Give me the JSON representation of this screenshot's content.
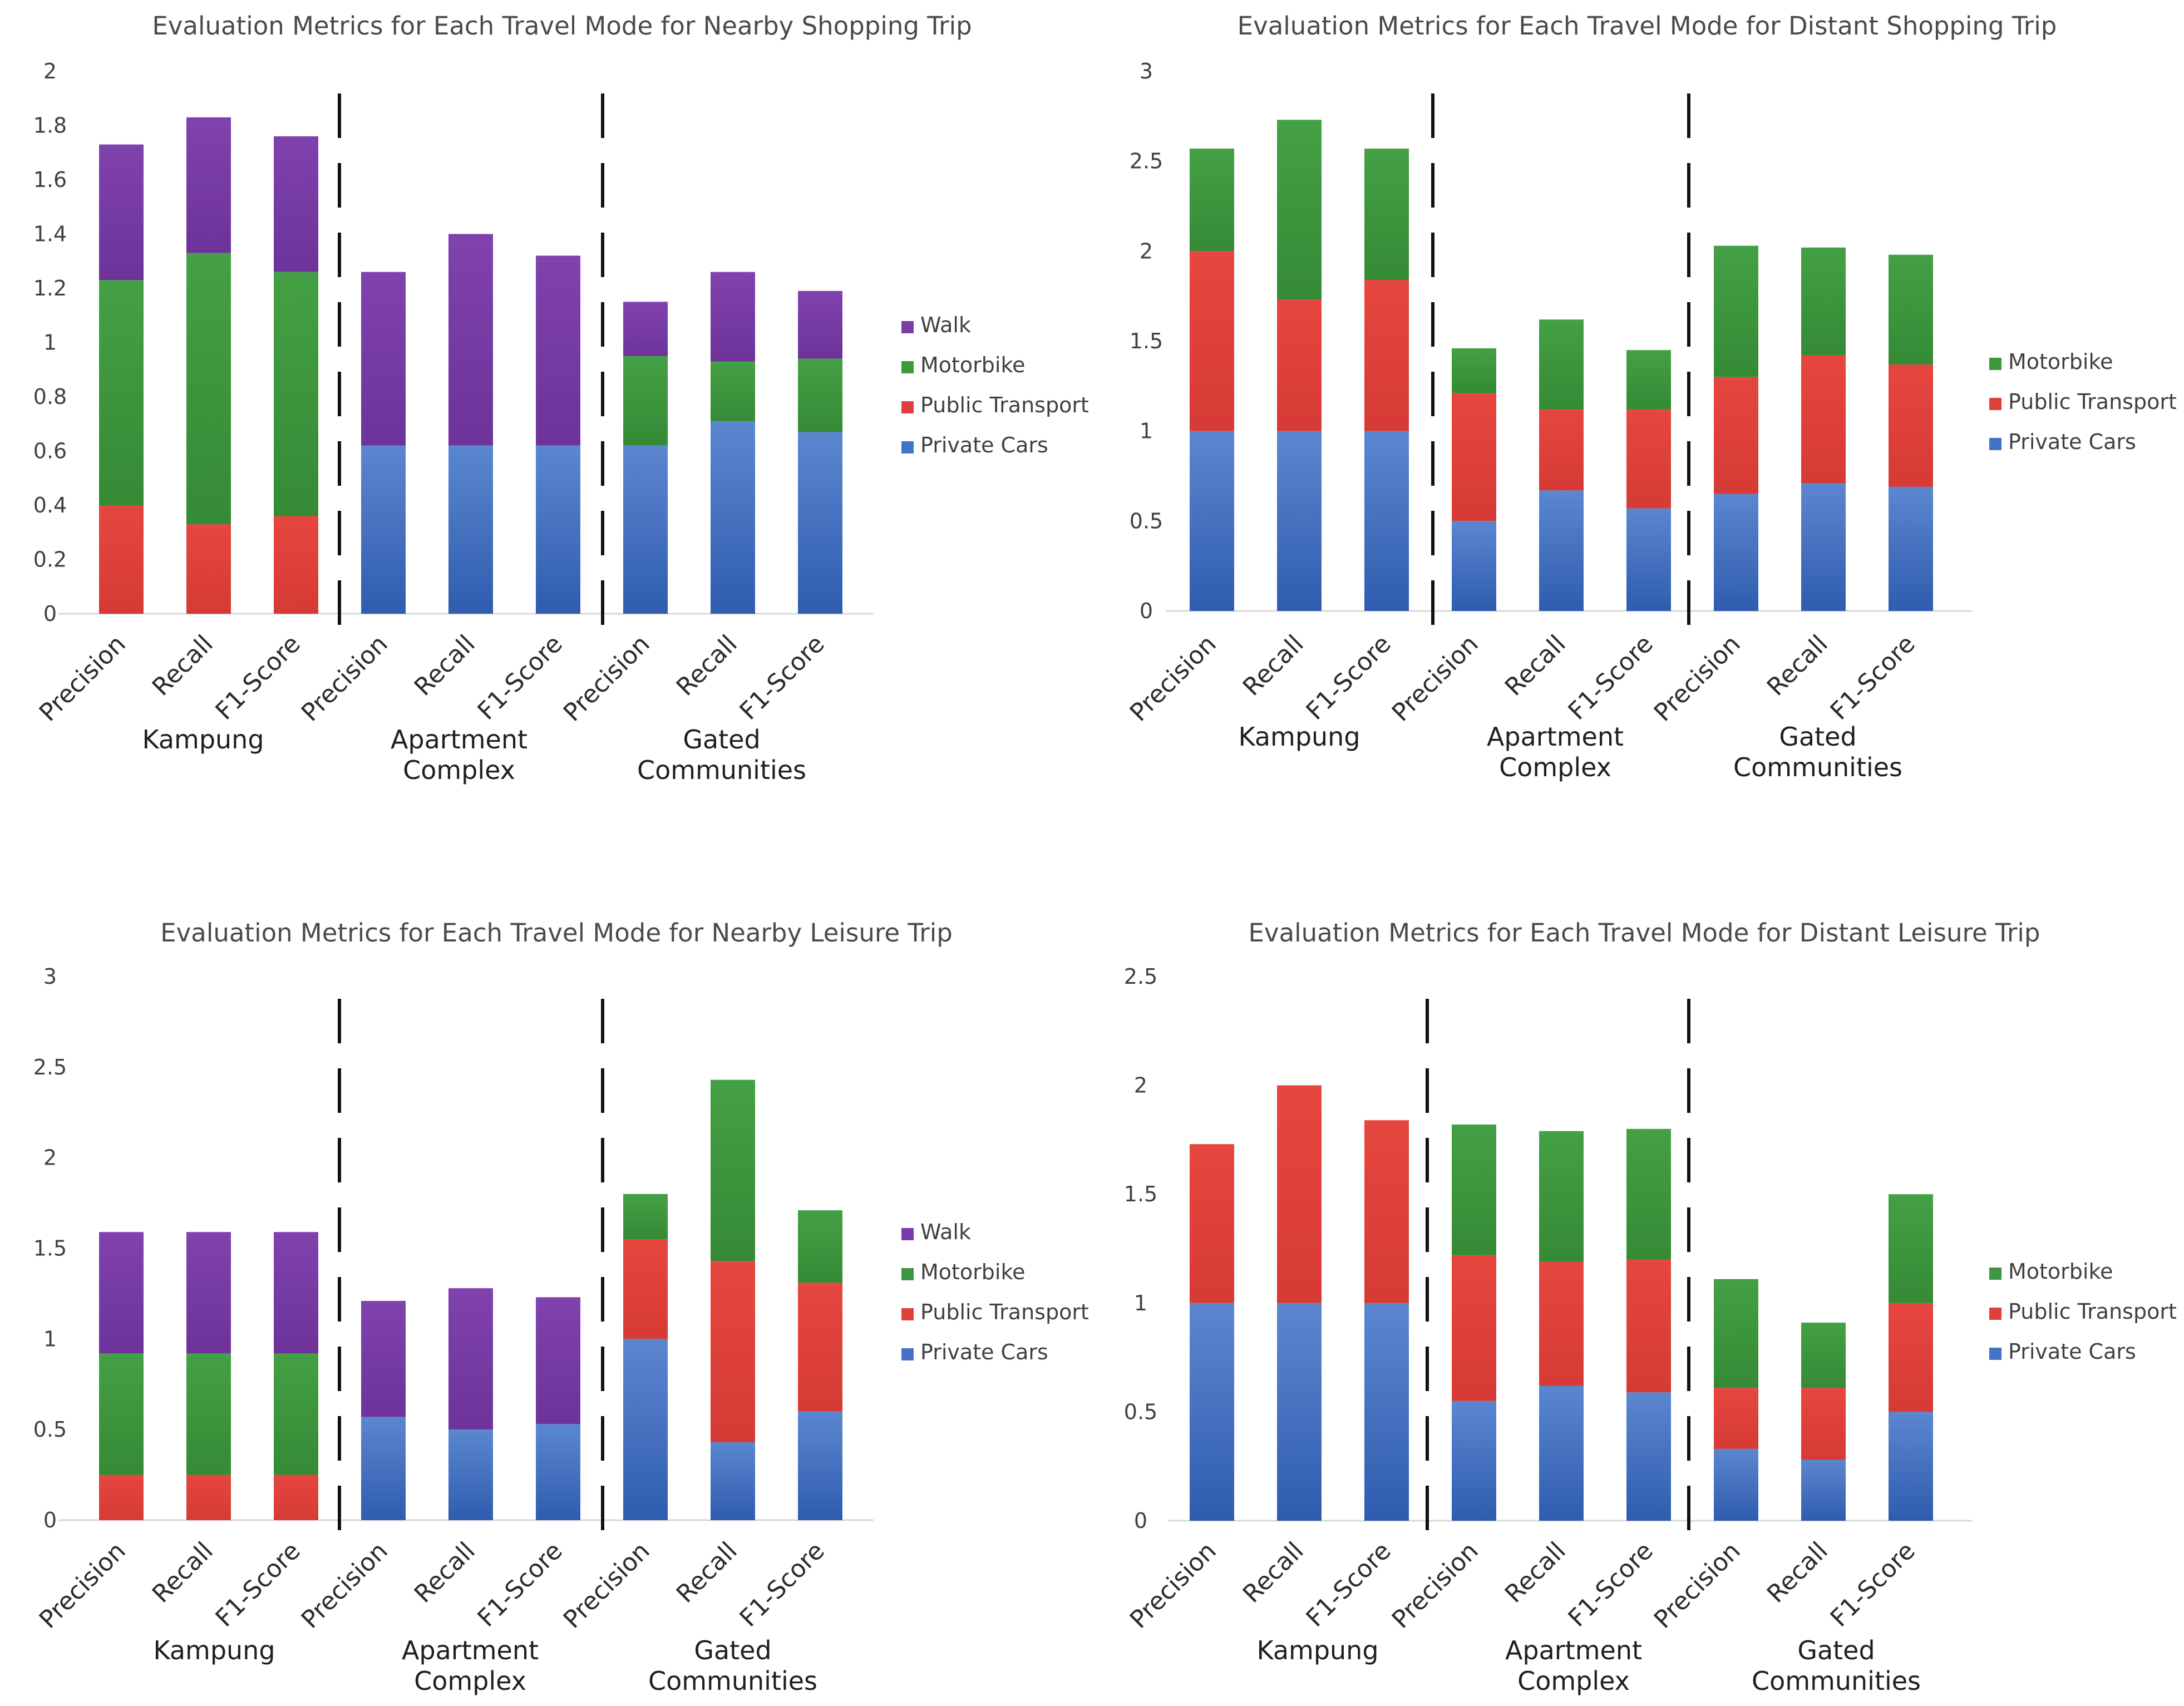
{
  "colors": {
    "Private Cars": "#4472C4",
    "Public Transport": "#E0403C",
    "Motorbike": "#3E963E",
    "Walk": "#7A3CA6"
  },
  "chart_data": [
    {
      "type": "bar",
      "stacked": true,
      "title": "Evaluation Metrics for Each Travel Mode for Nearby Shopping Trip",
      "groups": [
        "Kampung",
        "Apartment\nComplex",
        "Gated\nCommunities"
      ],
      "categories": [
        "Precision",
        "Recall",
        "F1-Score"
      ],
      "ylim": [
        0,
        2
      ],
      "yticks": [
        "0",
        "0.2",
        "0.4",
        "0.6",
        "0.8",
        "1",
        "1.2",
        "1.4",
        "1.6",
        "1.8",
        "2"
      ],
      "legend": [
        "Walk",
        "Motorbike",
        "Public Transport",
        "Private Cars"
      ],
      "series": [
        {
          "name": "Private Cars",
          "values": [
            [
              0,
              0,
              0
            ],
            [
              0.62,
              0.62,
              0.62
            ],
            [
              0.62,
              0.71,
              0.67
            ]
          ]
        },
        {
          "name": "Public Transport",
          "values": [
            [
              0.4,
              0.33,
              0.36
            ],
            [
              0,
              0,
              0
            ],
            [
              0,
              0,
              0
            ]
          ]
        },
        {
          "name": "Motorbike",
          "values": [
            [
              0.83,
              1.0,
              0.9
            ],
            [
              0,
              0,
              0
            ],
            [
              0.33,
              0.22,
              0.27
            ]
          ]
        },
        {
          "name": "Walk",
          "values": [
            [
              0.5,
              0.5,
              0.5
            ],
            [
              0.64,
              0.78,
              0.7
            ],
            [
              0.2,
              0.33,
              0.25
            ]
          ]
        }
      ]
    },
    {
      "type": "bar",
      "stacked": true,
      "title": "Evaluation Metrics for Each Travel Mode for Distant Shopping Trip",
      "groups": [
        "Kampung",
        "Apartment\nComplex",
        "Gated\nCommunities"
      ],
      "categories": [
        "Precision",
        "Recall",
        "F1-Score"
      ],
      "ylim": [
        0,
        3
      ],
      "yticks": [
        "0",
        "0.5",
        "1",
        "1.5",
        "2",
        "2.5",
        "3"
      ],
      "legend": [
        "Motorbike",
        "Public Transport",
        "Private Cars"
      ],
      "series": [
        {
          "name": "Private Cars",
          "values": [
            [
              1.0,
              1.0,
              1.0
            ],
            [
              0.5,
              0.67,
              0.57
            ],
            [
              0.65,
              0.71,
              0.69
            ]
          ]
        },
        {
          "name": "Public Transport",
          "values": [
            [
              1.0,
              0.73,
              0.84
            ],
            [
              0.71,
              0.45,
              0.55
            ],
            [
              0.65,
              0.71,
              0.68
            ]
          ]
        },
        {
          "name": "Motorbike",
          "values": [
            [
              0.57,
              1.0,
              0.73
            ],
            [
              0.25,
              0.5,
              0.33
            ],
            [
              0.73,
              0.6,
              0.61
            ]
          ]
        }
      ]
    },
    {
      "type": "bar",
      "stacked": true,
      "title": "Evaluation Metrics for Each Travel Mode for Nearby Leisure Trip",
      "groups": [
        "Kampung",
        "Apartment\nComplex",
        "Gated\nCommunities"
      ],
      "categories": [
        "Precision",
        "Recall",
        "F1-Score"
      ],
      "ylim": [
        0,
        3
      ],
      "yticks": [
        "0",
        "0.5",
        "1",
        "1.5",
        "2",
        "2.5",
        "3"
      ],
      "legend": [
        "Walk",
        "Motorbike",
        "Public Transport",
        "Private Cars"
      ],
      "series": [
        {
          "name": "Private Cars",
          "values": [
            [
              0,
              0,
              0
            ],
            [
              0.57,
              0.5,
              0.53
            ],
            [
              1.0,
              0.43,
              0.6
            ]
          ]
        },
        {
          "name": "Public Transport",
          "values": [
            [
              0.25,
              0.25,
              0.25
            ],
            [
              0,
              0,
              0
            ],
            [
              0.55,
              1.0,
              0.71
            ]
          ]
        },
        {
          "name": "Motorbike",
          "values": [
            [
              0.67,
              0.67,
              0.67
            ],
            [
              0,
              0,
              0
            ],
            [
              0.25,
              1.0,
              0.4
            ]
          ]
        },
        {
          "name": "Walk",
          "values": [
            [
              0.67,
              0.67,
              0.67
            ],
            [
              0.64,
              0.78,
              0.7
            ],
            [
              0,
              0,
              0
            ]
          ]
        }
      ]
    },
    {
      "type": "bar",
      "stacked": true,
      "title": "Evaluation Metrics for Each Travel Mode for Distant Leisure Trip",
      "groups": [
        "Kampung",
        "Apartment\nComplex",
        "Gated\nCommunities"
      ],
      "categories": [
        "Precision",
        "Recall",
        "F1-Score"
      ],
      "ylim": [
        0,
        2.5
      ],
      "yticks": [
        "0",
        "0.5",
        "1",
        "1.5",
        "2",
        "2.5"
      ],
      "legend": [
        "Motorbike",
        "Public Transport",
        "Private Cars"
      ],
      "series": [
        {
          "name": "Private Cars",
          "values": [
            [
              1.0,
              1.0,
              1.0
            ],
            [
              0.55,
              0.62,
              0.59
            ],
            [
              0.33,
              0.28,
              0.5
            ]
          ]
        },
        {
          "name": "Public Transport",
          "values": [
            [
              0.73,
              1.0,
              0.84
            ],
            [
              0.67,
              0.57,
              0.61
            ],
            [
              0.28,
              0.33,
              0.5
            ]
          ]
        },
        {
          "name": "Motorbike",
          "values": [
            [
              0,
              0,
              0
            ],
            [
              0.6,
              0.6,
              0.6
            ],
            [
              0.5,
              0.3,
              0.5
            ]
          ]
        }
      ]
    }
  ]
}
